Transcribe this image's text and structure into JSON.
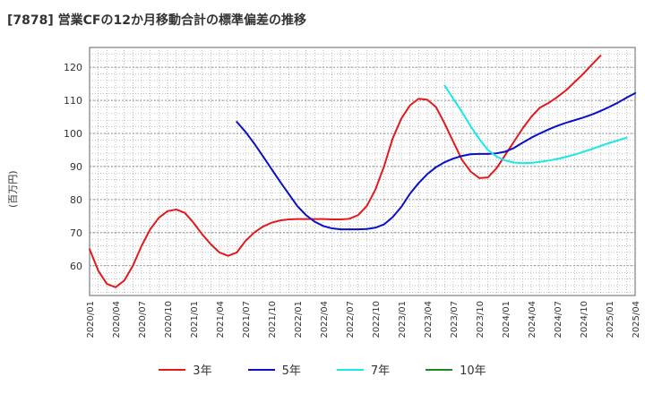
{
  "chart_data": {
    "type": "line",
    "title": "[7878]  営業CFの12か月移動合計の標準偏差の推移",
    "ylabel": "(百万円)",
    "xlabel": "",
    "ylim": [
      51,
      126
    ],
    "yticks": [
      60,
      70,
      80,
      90,
      100,
      110,
      120
    ],
    "x_ticks": [
      "2020/01",
      "2020/04",
      "2020/07",
      "2020/10",
      "2021/01",
      "2021/04",
      "2021/07",
      "2021/10",
      "2022/01",
      "2022/04",
      "2022/07",
      "2022/10",
      "2023/01",
      "2023/04",
      "2023/07",
      "2023/10",
      "2024/01",
      "2024/04",
      "2024/07",
      "2024/10",
      "2025/01",
      "2025/04"
    ],
    "grid": true,
    "legend_position": "bottom",
    "series": [
      {
        "name": "3年",
        "color": "#e31a1c",
        "start": "2020/01",
        "values": [
          65,
          58.5,
          54.5,
          53.5,
          55.5,
          60,
          66,
          71,
          74.5,
          76.5,
          77,
          76,
          73,
          69.5,
          66.5,
          64,
          63,
          64,
          67.5,
          70,
          71.8,
          73,
          73.7,
          74,
          74.1,
          74.1,
          74.1,
          74.1,
          74,
          74,
          74.2,
          75.3,
          78,
          83,
          90,
          98.5,
          104.5,
          108.5,
          110.5,
          110.2,
          108,
          103,
          97.5,
          92,
          88.5,
          86.5,
          86.7,
          89.5,
          93.5,
          97.5,
          101.5,
          105,
          107.8,
          109.2,
          111,
          113,
          115.5,
          118,
          120.8,
          123.5
        ]
      },
      {
        "name": "5年",
        "color": "#0a10c8",
        "start": "2021/06",
        "values": [
          103.5,
          100.5,
          97,
          93.2,
          89.3,
          85.4,
          81.7,
          78,
          75.3,
          73.3,
          72,
          71.3,
          71,
          71,
          71,
          71.1,
          71.5,
          72.5,
          74.7,
          77.8,
          81.8,
          85,
          87.7,
          89.8,
          91.3,
          92.4,
          93.2,
          93.7,
          93.8,
          93.8,
          94,
          94.5,
          95.6,
          97.2,
          98.7,
          100,
          101.2,
          102.3,
          103.2,
          104,
          104.8,
          105.7,
          106.8,
          108,
          109.3,
          110.8,
          112.2
        ]
      },
      {
        "name": "7年",
        "color": "#18e8e8",
        "start": "2023/06",
        "values": [
          114.5,
          110.5,
          106.5,
          102.2,
          98.3,
          95,
          93,
          91.8,
          91.2,
          91,
          91.1,
          91.4,
          91.8,
          92.3,
          92.9,
          93.6,
          94.4,
          95.3,
          96.2,
          97.1,
          97.9,
          98.7
        ]
      },
      {
        "name": "10年",
        "color": "#1a8a1a",
        "start": "2025/01",
        "values": []
      }
    ]
  }
}
